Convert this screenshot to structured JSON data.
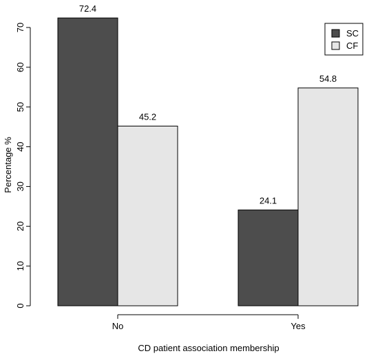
{
  "chart_data": {
    "type": "bar",
    "title": "",
    "xlabel": "CD patient association membership",
    "ylabel": "Percentage %",
    "categories": [
      "No",
      "Yes"
    ],
    "series": [
      {
        "name": "SC",
        "values": [
          72.4,
          24.1
        ],
        "color": "#4d4d4d"
      },
      {
        "name": "CF",
        "values": [
          45.2,
          54.8
        ],
        "color": "#e6e6e6"
      }
    ],
    "data_labels": [
      [
        "72.4",
        "24.1"
      ],
      [
        "45.2",
        "54.8"
      ]
    ],
    "ylim": [
      0,
      70
    ],
    "yticks": [
      0,
      10,
      20,
      30,
      40,
      50,
      60,
      70
    ],
    "grid": false,
    "legend_position": "top-right"
  }
}
